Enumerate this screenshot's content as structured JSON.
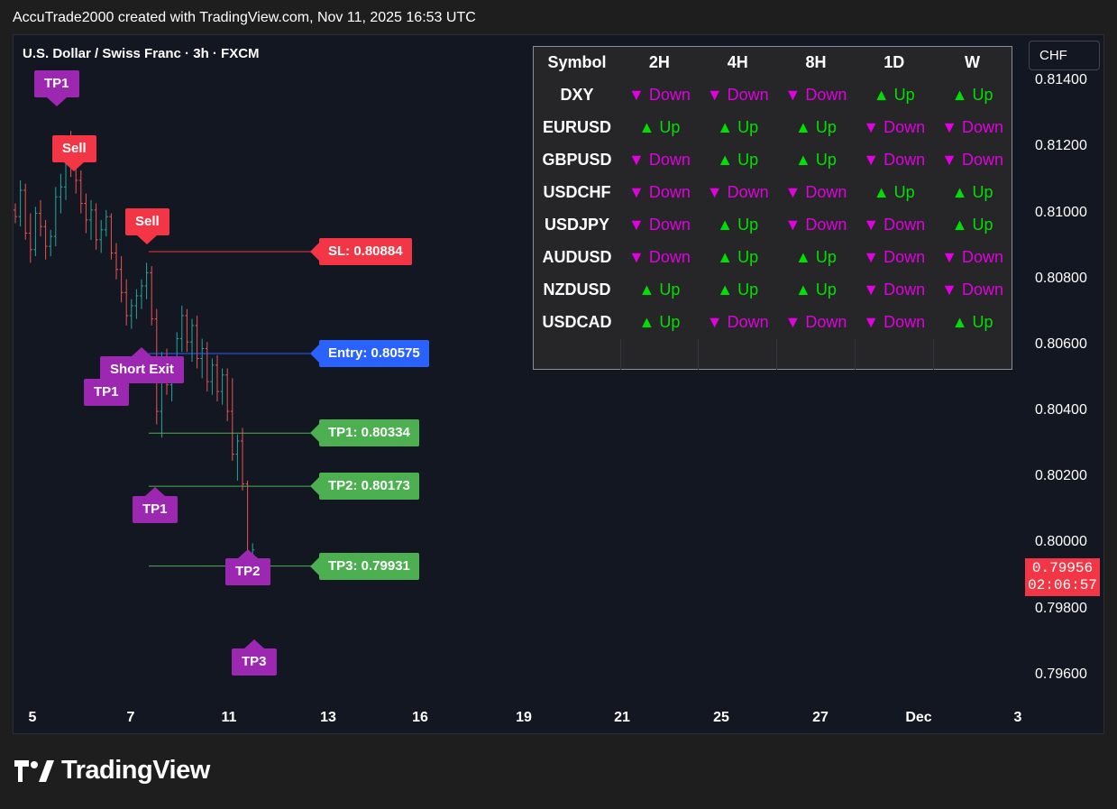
{
  "header": {
    "text": "AccuTrade2000 created with TradingView.com, Nov 11, 2025 16:53 UTC"
  },
  "chart": {
    "title": "U.S. Dollar / Swiss Franc · 3h · FXCM",
    "currency": "CHF",
    "last_price": "0.79956",
    "countdown": "02:06:57"
  },
  "colors": {
    "up_candle": "#26a69a",
    "down_candle": "#ef5350",
    "sl": "#f23645",
    "entry": "#2962ff",
    "tp": "#4caf50",
    "marker_purple": "#9c27b0",
    "sell": "#f23645",
    "up_text": "#00e000",
    "down_text": "#e000e0"
  },
  "trade_levels": [
    {
      "key": "sl",
      "label": "SL: 0.80884",
      "price": 0.80884
    },
    {
      "key": "entry",
      "label": "Entry: 0.80575",
      "price": 0.80575
    },
    {
      "key": "tp1",
      "label": "TP1: 0.80334",
      "price": 0.80334
    },
    {
      "key": "tp2",
      "label": "TP2: 0.80173",
      "price": 0.80173
    },
    {
      "key": "tp3",
      "label": "TP3: 0.79931",
      "price": 0.79931
    }
  ],
  "markers": {
    "tp1_top": "TP1",
    "sell_1": "Sell",
    "sell_2": "Sell",
    "short_exit": "Short Exit",
    "tp1_mid": "TP1",
    "tp1_low": "TP1",
    "tp2": "TP2",
    "tp3": "TP3"
  },
  "trend_table": {
    "headers": [
      "Symbol",
      "2H",
      "4H",
      "8H",
      "1D",
      "W"
    ],
    "rows": [
      {
        "symbol": "DXY",
        "trends": [
          "Down",
          "Down",
          "Down",
          "Up",
          "Up"
        ]
      },
      {
        "symbol": "EURUSD",
        "trends": [
          "Up",
          "Up",
          "Up",
          "Down",
          "Down"
        ]
      },
      {
        "symbol": "GBPUSD",
        "trends": [
          "Down",
          "Up",
          "Up",
          "Down",
          "Down"
        ]
      },
      {
        "symbol": "USDCHF",
        "trends": [
          "Down",
          "Down",
          "Down",
          "Up",
          "Up"
        ]
      },
      {
        "symbol": "USDJPY",
        "trends": [
          "Down",
          "Up",
          "Down",
          "Down",
          "Up"
        ]
      },
      {
        "symbol": "AUDUSD",
        "trends": [
          "Down",
          "Up",
          "Up",
          "Down",
          "Down"
        ]
      },
      {
        "symbol": "NZDUSD",
        "trends": [
          "Up",
          "Up",
          "Up",
          "Down",
          "Down"
        ]
      },
      {
        "symbol": "USDCAD",
        "trends": [
          "Up",
          "Down",
          "Down",
          "Down",
          "Up"
        ]
      }
    ]
  },
  "footer": {
    "brand": "TradingView",
    "logo_icon": "tradingview-logo-icon"
  },
  "chart_data": {
    "type": "candlestick",
    "title": "U.S. Dollar / Swiss Franc · 3h · FXCM",
    "ylim": [
      0.7955,
      0.8154
    ],
    "y_ticks": [
      "0.81400",
      "0.81200",
      "0.81000",
      "0.80800",
      "0.80600",
      "0.80400",
      "0.80200",
      "0.80000",
      "0.79800",
      "0.79600"
    ],
    "x_ticks": [
      "5",
      "7",
      "11",
      "13",
      "16",
      "19",
      "21",
      "25",
      "27",
      "Dec",
      "3"
    ],
    "candles_ohlc": [
      [
        0.8101,
        0.8103,
        0.8097,
        0.8099
      ],
      [
        0.8099,
        0.811,
        0.8096,
        0.8107
      ],
      [
        0.8107,
        0.8109,
        0.8092,
        0.8094
      ],
      [
        0.8094,
        0.81,
        0.8085,
        0.8089
      ],
      [
        0.8089,
        0.8102,
        0.8087,
        0.81
      ],
      [
        0.81,
        0.8104,
        0.8093,
        0.8096
      ],
      [
        0.8096,
        0.8098,
        0.8086,
        0.809
      ],
      [
        0.809,
        0.8095,
        0.8087,
        0.8093
      ],
      [
        0.8093,
        0.8108,
        0.809,
        0.8105
      ],
      [
        0.8105,
        0.8112,
        0.81,
        0.8108
      ],
      [
        0.8108,
        0.8122,
        0.8104,
        0.8119
      ],
      [
        0.8119,
        0.8125,
        0.8111,
        0.8114
      ],
      [
        0.8114,
        0.8118,
        0.8106,
        0.811
      ],
      [
        0.811,
        0.8113,
        0.81,
        0.8103
      ],
      [
        0.8103,
        0.8106,
        0.8094,
        0.8098
      ],
      [
        0.8098,
        0.8104,
        0.8092,
        0.8101
      ],
      [
        0.8101,
        0.8103,
        0.8089,
        0.8092
      ],
      [
        0.8092,
        0.8098,
        0.8088,
        0.8095
      ],
      [
        0.8095,
        0.8101,
        0.8093,
        0.8099
      ],
      [
        0.8099,
        0.81,
        0.8086,
        0.8088
      ],
      [
        0.8088,
        0.8091,
        0.808,
        0.8083
      ],
      [
        0.8083,
        0.8087,
        0.8073,
        0.8076
      ],
      [
        0.8076,
        0.808,
        0.8066,
        0.8069
      ],
      [
        0.8069,
        0.8074,
        0.8065,
        0.8072
      ],
      [
        0.8072,
        0.8077,
        0.8068,
        0.8075
      ],
      [
        0.8075,
        0.808,
        0.8071,
        0.8078
      ],
      [
        0.8078,
        0.8085,
        0.8074,
        0.8082
      ],
      [
        0.8082,
        0.8084,
        0.8066,
        0.8068
      ],
      [
        0.8068,
        0.8071,
        0.8036,
        0.804
      ],
      [
        0.804,
        0.8058,
        0.8032,
        0.8055
      ],
      [
        0.8055,
        0.8059,
        0.8045,
        0.8048
      ],
      [
        0.8048,
        0.8056,
        0.8043,
        0.8054
      ],
      [
        0.8054,
        0.8064,
        0.805,
        0.8062
      ],
      [
        0.8062,
        0.8072,
        0.8058,
        0.8069
      ],
      [
        0.8069,
        0.8071,
        0.8058,
        0.8061
      ],
      [
        0.8061,
        0.8068,
        0.8055,
        0.8066
      ],
      [
        0.8066,
        0.8069,
        0.8053,
        0.8056
      ],
      [
        0.8056,
        0.8062,
        0.805,
        0.8059
      ],
      [
        0.8059,
        0.8061,
        0.8046,
        0.8049
      ],
      [
        0.8049,
        0.8056,
        0.8045,
        0.8054
      ],
      [
        0.8054,
        0.8057,
        0.8043,
        0.8046
      ],
      [
        0.8046,
        0.8053,
        0.8042,
        0.8051
      ],
      [
        0.8051,
        0.8053,
        0.8037,
        0.804
      ],
      [
        0.804,
        0.805,
        0.8025,
        0.8027
      ],
      [
        0.8027,
        0.8033,
        0.8019,
        0.8031
      ],
      [
        0.8031,
        0.8035,
        0.8016,
        0.8018
      ],
      [
        0.8018,
        0.8019,
        0.7989,
        0.7995
      ],
      [
        0.7995,
        0.8,
        0.7993,
        0.7998
      ]
    ]
  }
}
